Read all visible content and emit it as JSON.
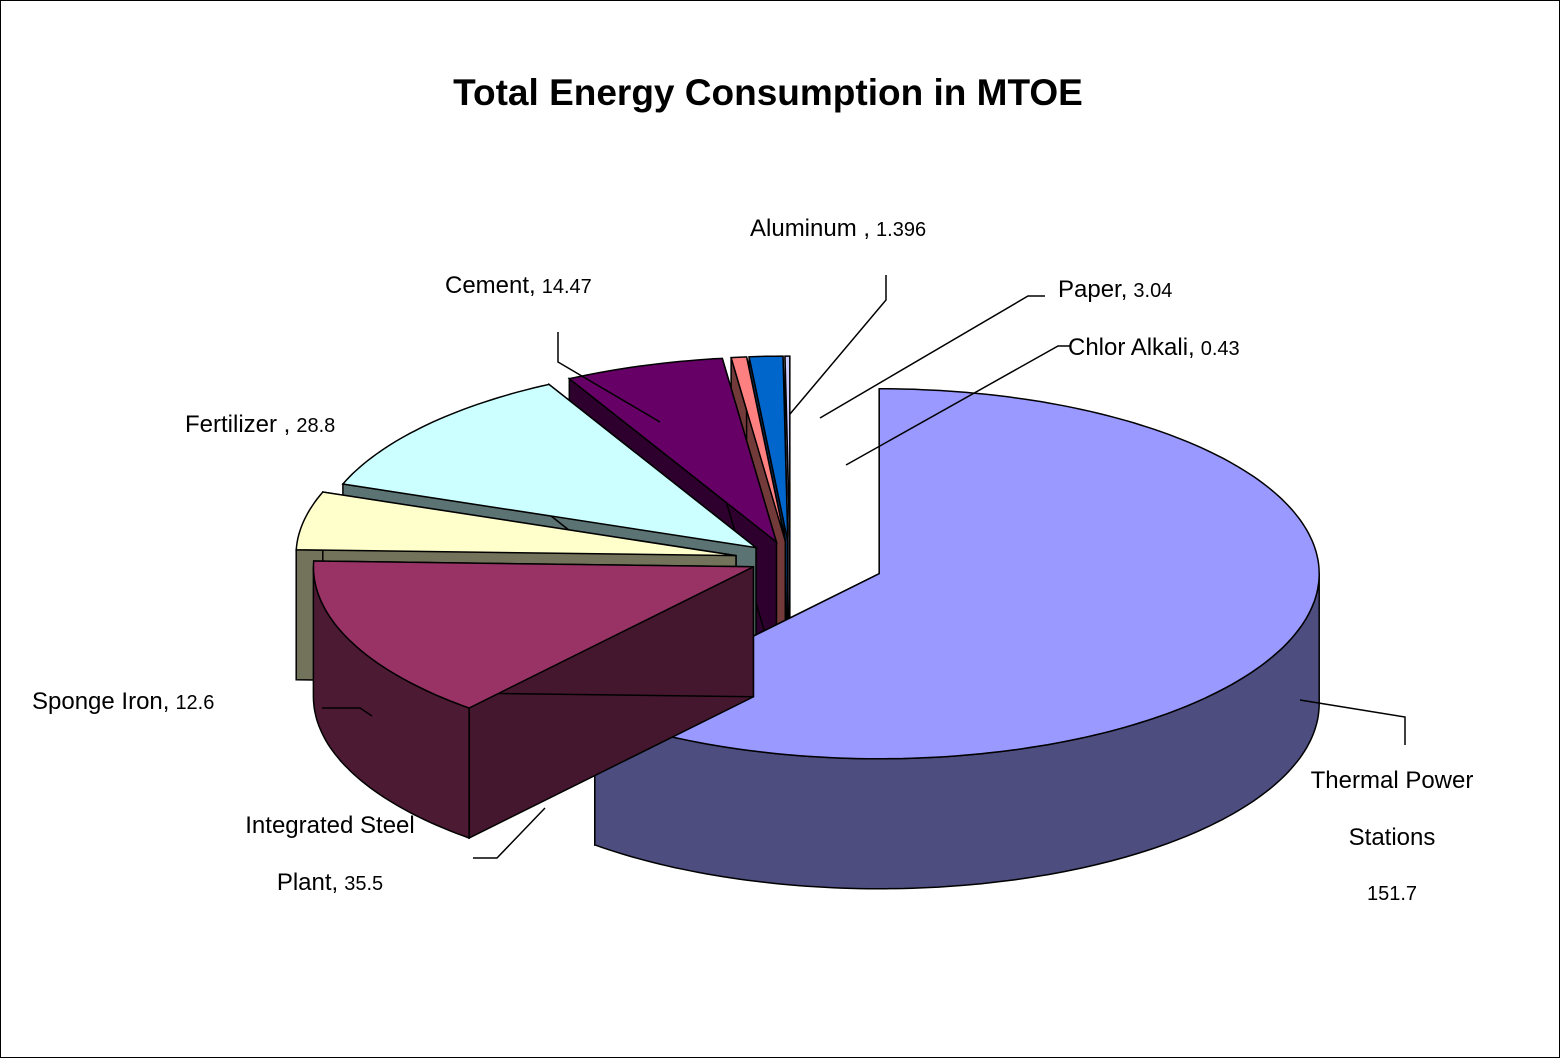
{
  "chart_data": {
    "type": "pie3d",
    "title": "Total Energy Consumption in MTOE",
    "categories": [
      "Thermal Power Stations",
      "Integrated Steel Plant,",
      "Sponge Iron,",
      "Fertilizer ,",
      "Cement,",
      "Aluminum ,",
      "Paper,",
      "Chlor Alkali,"
    ],
    "values": [
      151.7,
      35.5,
      12.6,
      28.8,
      14.47,
      1.396,
      3.04,
      0.43
    ],
    "colors": [
      "#9999ff",
      "#993366",
      "#ffffcc",
      "#ccffff",
      "#660066",
      "#ff8080",
      "#0066cc",
      "#ccccff"
    ]
  }
}
